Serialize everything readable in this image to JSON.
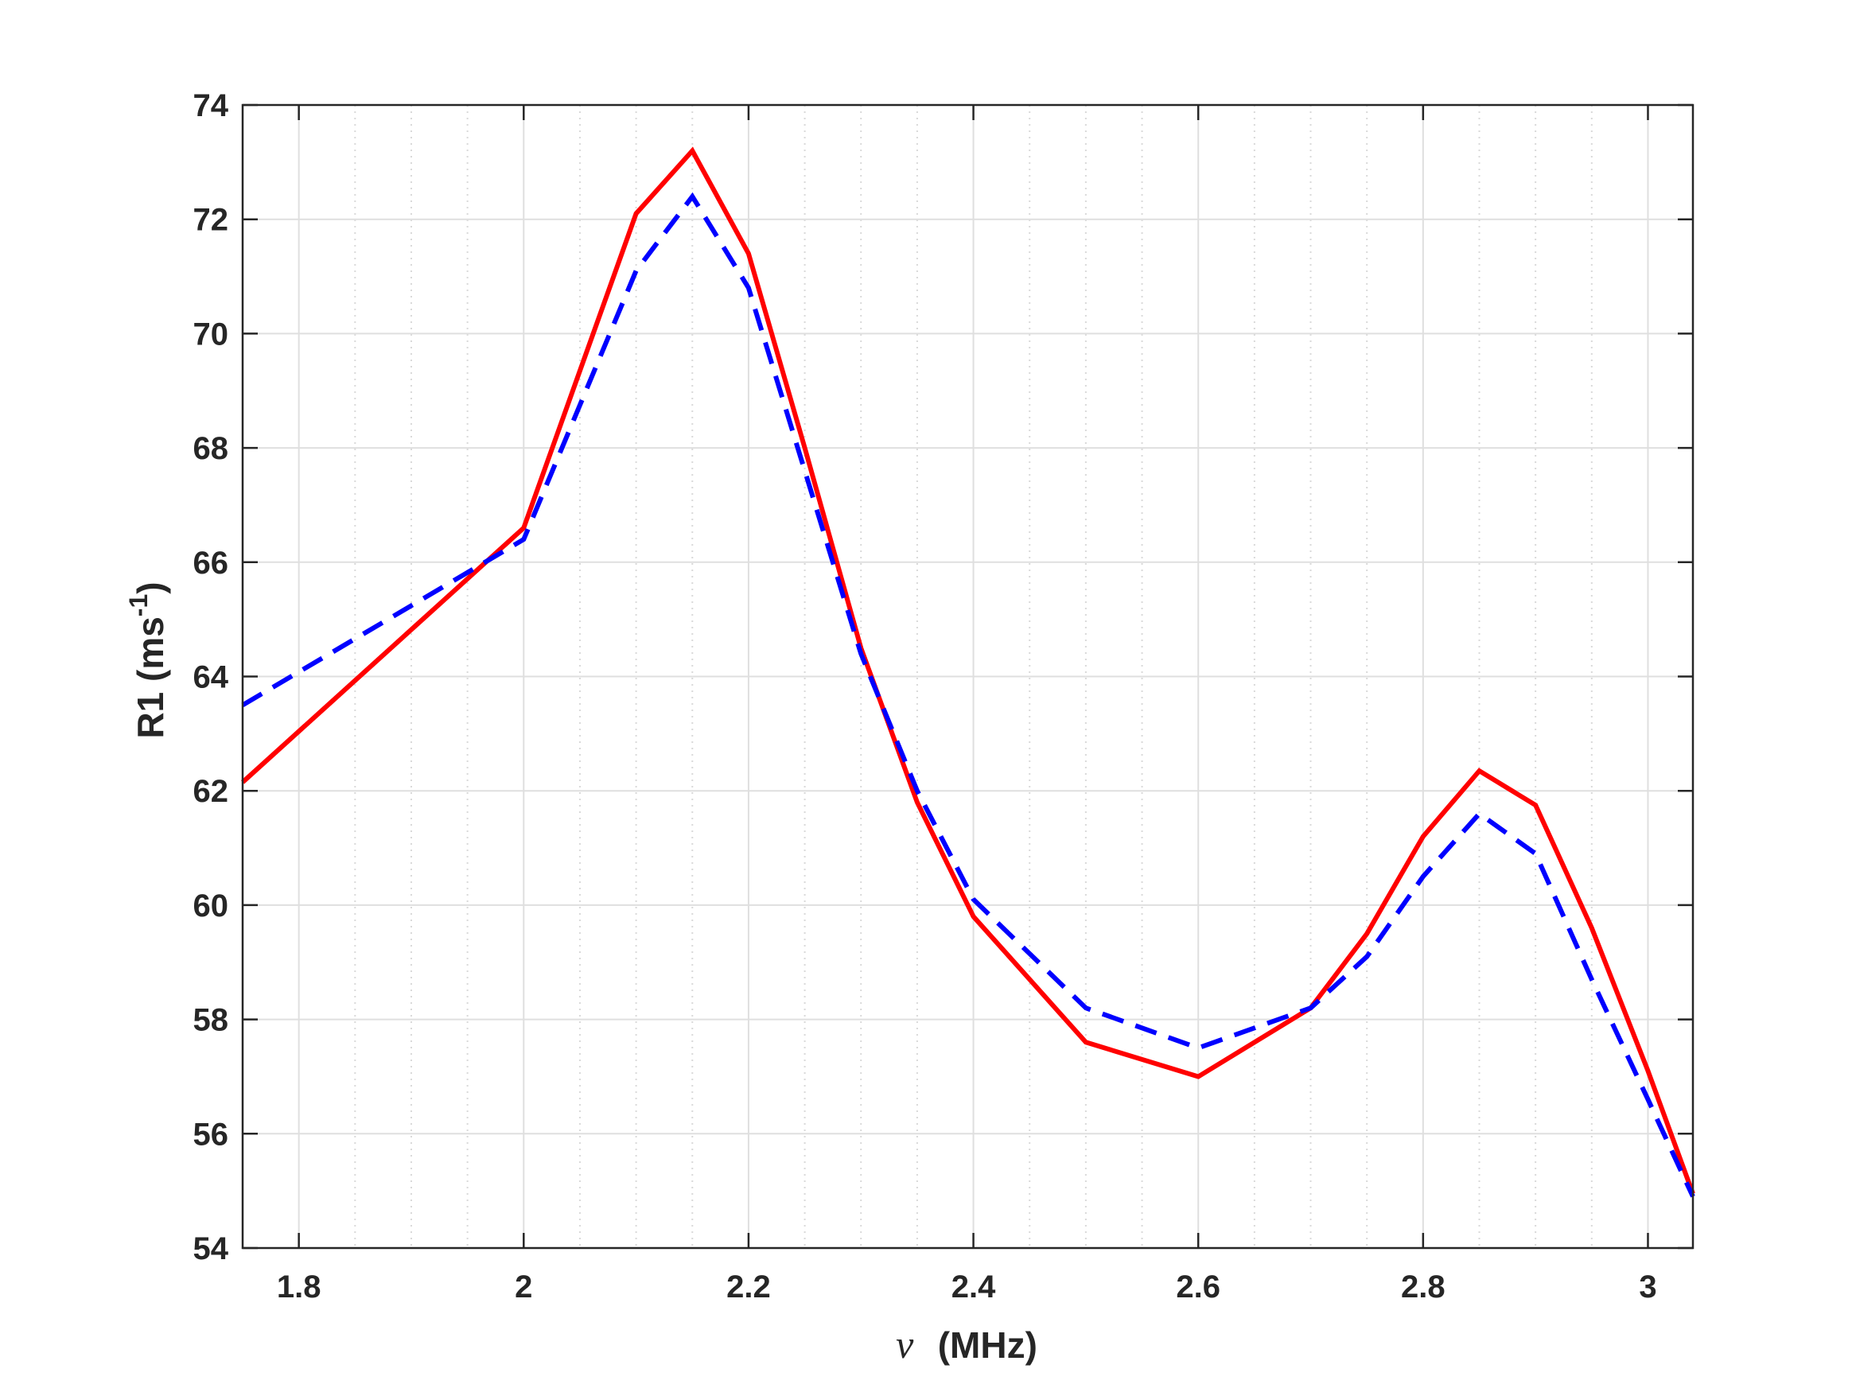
{
  "chart_data": {
    "type": "line",
    "title": "",
    "xlabel": {
      "symbol": "ν",
      "text": "(MHz)"
    },
    "ylabel": {
      "text": "R1 (ms",
      "superscript": "-1",
      "close": ")"
    },
    "xlim": [
      1.75,
      3.04
    ],
    "ylim": [
      54,
      74
    ],
    "xticks": [
      1.8,
      2,
      2.2,
      2.4,
      2.6,
      2.8,
      3
    ],
    "xtick_labels": [
      "1.8",
      "2",
      "2.2",
      "2.4",
      "2.6",
      "2.8",
      "3"
    ],
    "yticks": [
      54,
      56,
      58,
      60,
      62,
      64,
      66,
      68,
      70,
      72,
      74
    ],
    "ytick_labels": [
      "54",
      "56",
      "58",
      "60",
      "62",
      "64",
      "66",
      "68",
      "70",
      "72",
      "74"
    ],
    "x_minor_gridlines": [
      1.85,
      1.9,
      1.95,
      2.05,
      2.1,
      2.15,
      2.25,
      2.3,
      2.35,
      2.45,
      2.5,
      2.55,
      2.65,
      2.7,
      2.75,
      2.85,
      2.9,
      2.95
    ],
    "grid": true,
    "series": [
      {
        "color": "#ff0000",
        "style": "solid",
        "x": [
          1.75,
          2.0,
          2.1,
          2.15,
          2.2,
          2.25,
          2.3,
          2.35,
          2.4,
          2.5,
          2.6,
          2.7,
          2.75,
          2.8,
          2.85,
          2.9,
          2.95,
          3.0,
          3.04
        ],
        "y": [
          62.15,
          66.6,
          72.1,
          73.2,
          71.4,
          68.0,
          64.5,
          61.8,
          59.8,
          57.6,
          57.0,
          58.2,
          59.5,
          61.2,
          62.35,
          61.75,
          59.6,
          57.1,
          54.95
        ]
      },
      {
        "color": "#0000ff",
        "style": "dashed",
        "x": [
          1.75,
          2.0,
          2.1,
          2.15,
          2.2,
          2.25,
          2.3,
          2.35,
          2.4,
          2.5,
          2.6,
          2.7,
          2.75,
          2.8,
          2.85,
          2.9,
          2.95,
          3.0,
          3.04
        ],
        "y": [
          63.5,
          66.4,
          71.1,
          72.4,
          70.8,
          67.6,
          64.4,
          62.0,
          60.1,
          58.2,
          57.5,
          58.2,
          59.1,
          60.5,
          61.6,
          60.9,
          58.7,
          56.6,
          54.9
        ]
      }
    ]
  }
}
